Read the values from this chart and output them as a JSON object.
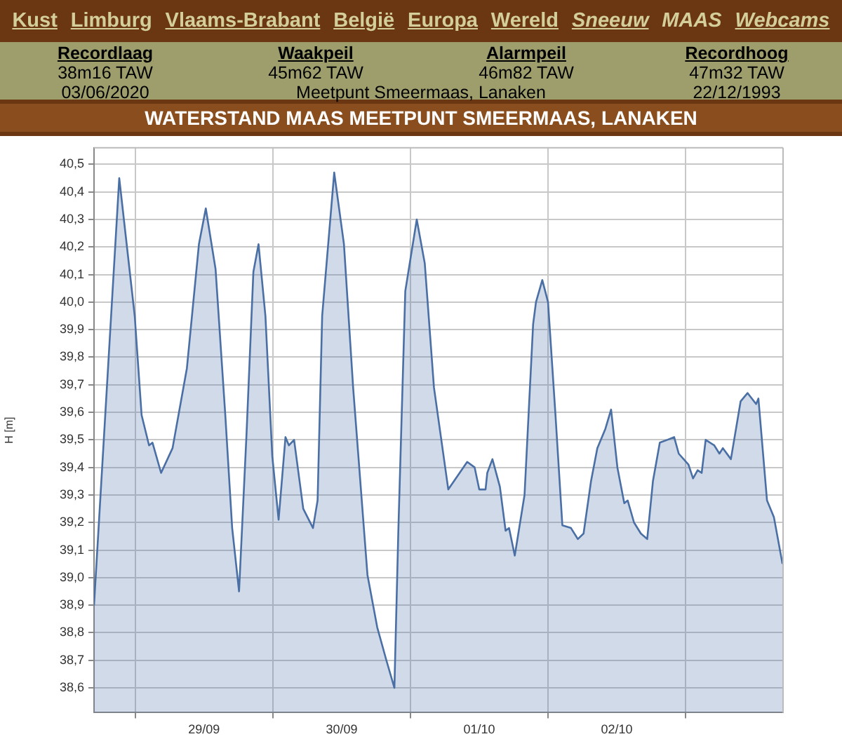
{
  "chart_data": {
    "type": "area",
    "title": "WATERSTAND MAAS MEETPUNT SMEERMAAS, LANAKEN",
    "ylabel": "H [m]",
    "annotations": [
      "Kust",
      "Limburg",
      "Vlaams-Brabant",
      "België",
      "Europa",
      "Wereld",
      "Sneeuw",
      "MAAS",
      "Webcams",
      "Recordlaag",
      "Waakpeil",
      "Alarmpeil",
      "Recordhoog",
      "38m16 TAW",
      "45m62 TAW",
      "46m82 TAW",
      "47m32 TAW",
      "03/06/2020",
      "Meetpunt Smeermaas, Lanaken",
      "22/12/1993"
    ],
    "x": [
      "--09-28T16:48",
      "--09-28T21:12",
      "--09-28T23:54",
      "--09-29T01:06",
      "--09-29T02:24",
      "--09-29T03:00",
      "--09-29T04:30",
      "--09-29T06:30",
      "--09-29T09:00",
      "--09-29T11:06",
      "--09-29T12:18",
      "--09-29T14:00",
      "--09-29T15:42",
      "--09-29T16:54",
      "--09-29T18:06",
      "--09-29T19:24",
      "--09-29T20:36",
      "--09-29T21:30",
      "--09-29T22:42",
      "--09-29T23:54",
      "--09-30T01:00",
      "--09-30T02:12",
      "--09-30T02:48",
      "--09-30T03:42",
      "--09-30T05:18",
      "--09-30T07:00",
      "--09-30T07:48",
      "--09-30T08:36",
      "--09-30T10:42",
      "--09-30T12:24",
      "--09-30T14:00",
      "--09-30T16:30",
      "--09-30T18:12",
      "--09-30T19:48",
      "--09-30T21:12",
      "--09-30T21:54",
      "--09-30T23:06",
      "--10-01T01:06",
      "--10-01T02:30",
      "--10-01T04:06",
      "--10-01T06:36",
      "--10-01T09:54",
      "--10-01T11:12",
      "--10-01T12:00",
      "--10-01T13:06",
      "--10-01T13:24",
      "--10-01T14:18",
      "--10-01T15:36",
      "--10-01T16:36",
      "--10-01T17:12",
      "--10-01T18:12",
      "--10-01T19:54",
      "--10-01T21:24",
      "--10-01T21:54",
      "--10-01T23:00",
      "--10-02T00:00",
      "--10-02T01:18",
      "--10-02T02:30",
      "--10-02T04:00",
      "--10-02T05:12",
      "--10-02T06:12",
      "--10-02T07:30",
      "--10-02T08:36",
      "--10-02T10:00",
      "--10-02T11:00",
      "--10-02T12:06",
      "--10-02T13:18",
      "--10-02T13:54",
      "--10-02T15:00",
      "--10-02T16:12",
      "--10-02T17:18",
      "--10-02T18:18",
      "--10-02T19:30",
      "--10-02T20:48",
      "--10-02T22:00",
      "--10-02T22:48",
      "--10-03T00:30",
      "--10-03T01:18",
      "--10-03T02:06",
      "--10-03T02:48",
      "--10-03T03:30",
      "--10-03T05:00",
      "--10-03T05:54",
      "--10-03T06:30",
      "--10-03T07:54",
      "--10-03T09:36",
      "--10-03T10:48",
      "--10-03T12:18",
      "--10-03T12:42",
      "--10-03T14:12",
      "--10-03T15:24",
      "--10-03T16:54"
    ],
    "series": [
      {
        "color": "#4a6fa5",
        "values": [
          38.9,
          40.45,
          39.95,
          39.59,
          39.48,
          39.49,
          39.38,
          39.47,
          39.76,
          40.21,
          40.34,
          40.12,
          39.59,
          39.18,
          38.95,
          39.52,
          40.11,
          40.21,
          39.95,
          39.44,
          39.21,
          39.51,
          39.48,
          39.5,
          39.25,
          39.18,
          39.28,
          39.95,
          40.47,
          40.21,
          39.69,
          39.01,
          38.82,
          38.7,
          38.6,
          39.18,
          40.04,
          40.3,
          40.14,
          39.69,
          39.32,
          39.42,
          39.4,
          39.32,
          39.32,
          39.38,
          39.43,
          39.33,
          39.17,
          39.18,
          39.08,
          39.3,
          39.92,
          40.0,
          40.08,
          40.0,
          39.59,
          39.19,
          39.18,
          39.14,
          39.16,
          39.35,
          39.47,
          39.54,
          39.61,
          39.4,
          39.27,
          39.28,
          39.2,
          39.16,
          39.14,
          39.35,
          39.49,
          39.5,
          39.51,
          39.45,
          39.41,
          39.36,
          39.39,
          39.38,
          39.5,
          39.48,
          39.45,
          39.47,
          39.43,
          39.64,
          39.67,
          39.63,
          39.65,
          39.28,
          39.22,
          39.05
        ]
      }
    ],
    "xlim": [
      "--09-28T16:48",
      "--10-03T17:00"
    ],
    "xticks": [
      {
        "value": "--09-29",
        "label": null
      },
      {
        "value": "--09-29T12:00",
        "label": "29/09"
      },
      {
        "value": "--09-30",
        "label": null
      },
      {
        "value": "--09-30T12:00",
        "label": "30/09"
      },
      {
        "value": "--10-01",
        "label": null
      },
      {
        "value": "--10-01T12:00",
        "label": "01/10"
      },
      {
        "value": "--10-02",
        "label": null
      },
      {
        "value": "--10-02T12:00",
        "label": "02/10"
      },
      {
        "value": "--10-03",
        "label": null
      }
    ],
    "ylim": [
      38.51,
      40.56
    ],
    "yticks": [
      {
        "value": 38.6,
        "label": "38,6"
      },
      {
        "value": 38.7,
        "label": "38,7"
      },
      {
        "value": 38.8,
        "label": "38,8"
      },
      {
        "value": 38.9,
        "label": "38,9"
      },
      {
        "value": 39.0,
        "label": "39,0"
      },
      {
        "value": 39.1,
        "label": "39,1"
      },
      {
        "value": 39.2,
        "label": "39,2"
      },
      {
        "value": 39.3,
        "label": "39,3"
      },
      {
        "value": 39.4,
        "label": "39,4"
      },
      {
        "value": 39.5,
        "label": "39,5"
      },
      {
        "value": 39.6,
        "label": "39,6"
      },
      {
        "value": 39.7,
        "label": "39,7"
      },
      {
        "value": 39.8,
        "label": "39,8"
      },
      {
        "value": 39.9,
        "label": "39,9"
      },
      {
        "value": 40.0,
        "label": "40,0"
      },
      {
        "value": 40.1,
        "label": "40,1"
      },
      {
        "value": 40.2,
        "label": "40,2"
      },
      {
        "value": 40.3,
        "label": "40,3"
      },
      {
        "value": 40.4,
        "label": "40,4"
      },
      {
        "value": 40.5,
        "label": "40,5"
      }
    ],
    "grid": true,
    "legend": false,
    "marker": "none",
    "line_style": "solid"
  }
}
